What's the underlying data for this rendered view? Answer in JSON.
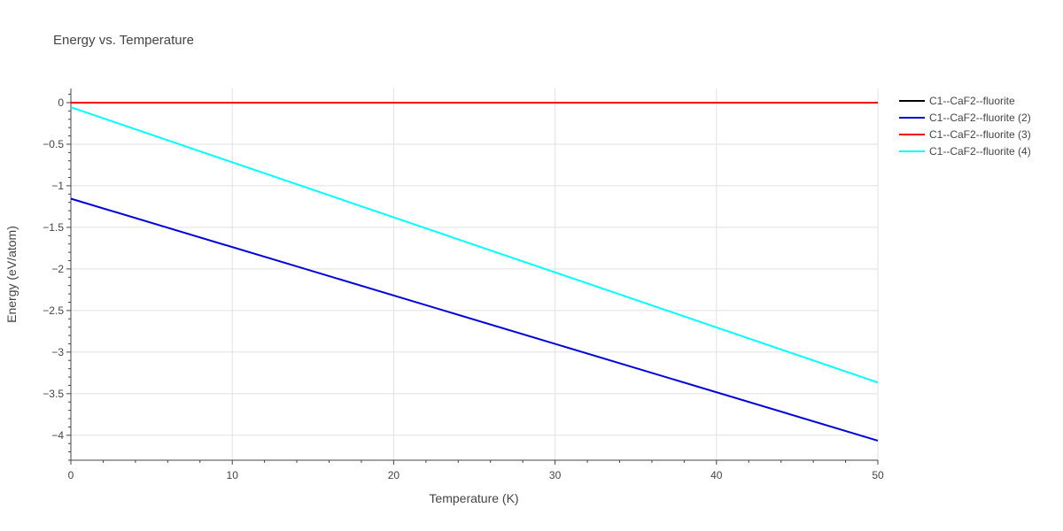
{
  "chart_data": {
    "type": "line",
    "title": "Energy vs. Temperature",
    "xlabel": "Temperature (K)",
    "ylabel": "Energy (eV/atom)",
    "xlim": [
      0,
      50
    ],
    "ylim": [
      -4.3,
      0.17
    ],
    "x_ticks": [
      0,
      10,
      20,
      30,
      40,
      50
    ],
    "x_tick_labels": [
      "0",
      "10",
      "20",
      "30",
      "40",
      "50"
    ],
    "y_ticks": [
      0,
      -0.5,
      -1,
      -1.5,
      -2,
      -2.5,
      -3,
      -3.5,
      -4
    ],
    "y_tick_labels": [
      "0",
      "−0.5",
      "−1",
      "−1.5",
      "−2",
      "−2.5",
      "−3",
      "−3.5",
      "−4"
    ],
    "grid": true,
    "legend_position": "top-right",
    "series": [
      {
        "name": "C1--CaF2--fluorite",
        "color": "#000000",
        "x": [
          0,
          50
        ],
        "y": [
          0,
          0
        ]
      },
      {
        "name": "C1--CaF2--fluorite (2)",
        "color": "#0000dd",
        "x": [
          0,
          50
        ],
        "y": [
          -1.155,
          -4.065
        ]
      },
      {
        "name": "C1--CaF2--fluorite (3)",
        "color": "#ff0000",
        "x": [
          0,
          50
        ],
        "y": [
          0,
          0
        ]
      },
      {
        "name": "C1--CaF2--fluorite (4)",
        "color": "#00ffff",
        "x": [
          0,
          50
        ],
        "y": [
          -0.055,
          -3.365
        ]
      }
    ]
  }
}
